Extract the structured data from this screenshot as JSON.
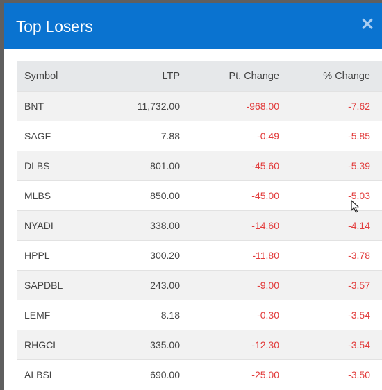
{
  "modal": {
    "title": "Top Losers",
    "close_icon": "close-icon"
  },
  "table": {
    "headers": {
      "symbol": "Symbol",
      "ltp": "LTP",
      "pt_change": "Pt. Change",
      "pct_change": "% Change"
    },
    "rows": [
      {
        "symbol": "BNT",
        "ltp": "11,732.00",
        "pt_change": "-968.00",
        "pct_change": "-7.62"
      },
      {
        "symbol": "SAGF",
        "ltp": "7.88",
        "pt_change": "-0.49",
        "pct_change": "-5.85"
      },
      {
        "symbol": "DLBS",
        "ltp": "801.00",
        "pt_change": "-45.60",
        "pct_change": "-5.39"
      },
      {
        "symbol": "MLBS",
        "ltp": "850.00",
        "pt_change": "-45.00",
        "pct_change": "-5.03"
      },
      {
        "symbol": "NYADI",
        "ltp": "338.00",
        "pt_change": "-14.60",
        "pct_change": "-4.14"
      },
      {
        "symbol": "HPPL",
        "ltp": "300.20",
        "pt_change": "-11.80",
        "pct_change": "-3.78"
      },
      {
        "symbol": "SAPDBL",
        "ltp": "243.00",
        "pt_change": "-9.00",
        "pct_change": "-3.57"
      },
      {
        "symbol": "LEMF",
        "ltp": "8.18",
        "pt_change": "-0.30",
        "pct_change": "-3.54"
      },
      {
        "symbol": "RHGCL",
        "ltp": "335.00",
        "pt_change": "-12.30",
        "pct_change": "-3.54"
      },
      {
        "symbol": "ALBSL",
        "ltp": "690.00",
        "pt_change": "-25.00",
        "pct_change": "-3.50"
      }
    ]
  },
  "colors": {
    "header_bg": "#0a73d0",
    "negative": "#e23c3c",
    "table_head_bg": "#e6e8ea",
    "stripe": "#f2f2f2"
  }
}
